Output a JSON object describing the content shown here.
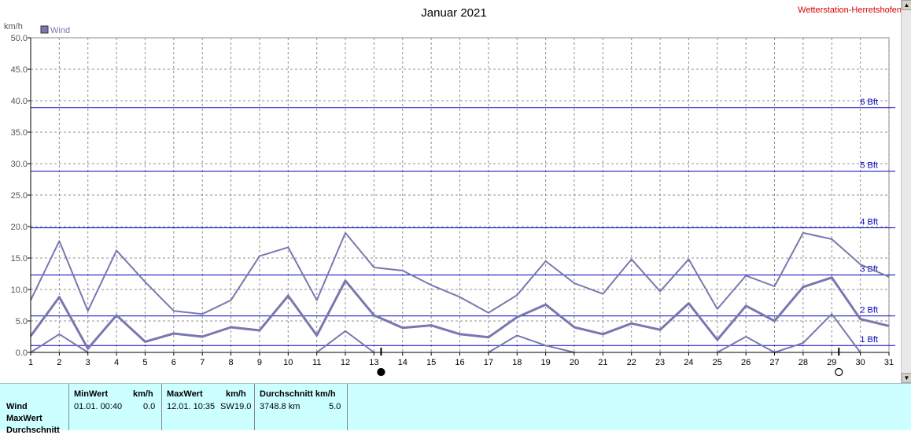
{
  "title": "Januar 2021",
  "station": "Wetterstation-Herretshofen",
  "chart_data": {
    "type": "line",
    "ylabel": "km/h",
    "ylim": [
      0,
      50
    ],
    "yticks": [
      "0.0",
      "5.0",
      "10.0",
      "15.0",
      "20.0",
      "25.0",
      "30.0",
      "35.0",
      "40.0",
      "45.0",
      "50.0"
    ],
    "x": [
      1,
      2,
      3,
      4,
      5,
      6,
      7,
      8,
      9,
      10,
      11,
      12,
      13,
      14,
      15,
      16,
      17,
      18,
      19,
      20,
      21,
      22,
      23,
      24,
      25,
      26,
      27,
      28,
      29,
      30,
      31
    ],
    "legend": "Wind",
    "series": [
      {
        "name": "Wind",
        "role": "max",
        "values": [
          8.3,
          17.7,
          6.6,
          16.2,
          11.2,
          6.6,
          6.1,
          8.3,
          15.3,
          16.7,
          8.3,
          19.0,
          13.5,
          13.0,
          10.7,
          8.8,
          6.3,
          9.1,
          14.5,
          11.0,
          9.3,
          14.8,
          9.7,
          14.8,
          6.9,
          12.2,
          10.5,
          19.0,
          18.0,
          14.0,
          12.0
        ]
      },
      {
        "name": "Wind",
        "role": "avg",
        "values": [
          2.6,
          8.8,
          0.6,
          5.9,
          1.7,
          3.0,
          2.5,
          4.0,
          3.5,
          9.0,
          2.7,
          11.4,
          5.9,
          3.9,
          4.3,
          2.9,
          2.4,
          5.6,
          7.6,
          4.0,
          2.9,
          4.6,
          3.6,
          7.8,
          2.0,
          7.4,
          5.0,
          10.4,
          11.9,
          5.3,
          4.2
        ]
      },
      {
        "name": "Wind",
        "role": "min",
        "values": [
          0.0,
          2.9,
          0.0,
          null,
          null,
          null,
          null,
          null,
          null,
          null,
          0.0,
          3.4,
          0.0,
          null,
          null,
          null,
          0.0,
          2.7,
          1.1,
          0.0,
          null,
          null,
          null,
          null,
          0.0,
          2.5,
          0.0,
          1.5,
          6.1,
          0.0,
          null
        ]
      }
    ],
    "beaufort": [
      {
        "label": "1 Bft",
        "value": 1.1
      },
      {
        "label": "2 Bft",
        "value": 5.8
      },
      {
        "label": "3 Bft",
        "value": 12.3
      },
      {
        "label": "4 Bft",
        "value": 19.8
      },
      {
        "label": "5 Bft",
        "value": 28.8
      },
      {
        "label": "6 Bft",
        "value": 38.9
      }
    ],
    "moon": [
      {
        "day": 13,
        "phase": "new"
      },
      {
        "day": 29,
        "phase": "full"
      }
    ],
    "colors": {
      "series": "#7878b0",
      "beaufort": "#0000c0",
      "grid": "#909090"
    }
  },
  "summary": {
    "row_label": "Wind",
    "row_max": "MaxWert",
    "row_avg": "Durchschnitt",
    "min_header": "MinWert",
    "min_unit": "km/h",
    "min_time": "01.01.  00:40",
    "min_value": "0.0",
    "max_header": "MaxWert",
    "max_unit": "km/h",
    "max_time": "12.01.  10:35",
    "max_dir": "SW",
    "max_value": "19.0",
    "avg_header": "Durchschnitt km/h",
    "avg_distance": "3748.8 km",
    "avg_value": "5.0"
  }
}
